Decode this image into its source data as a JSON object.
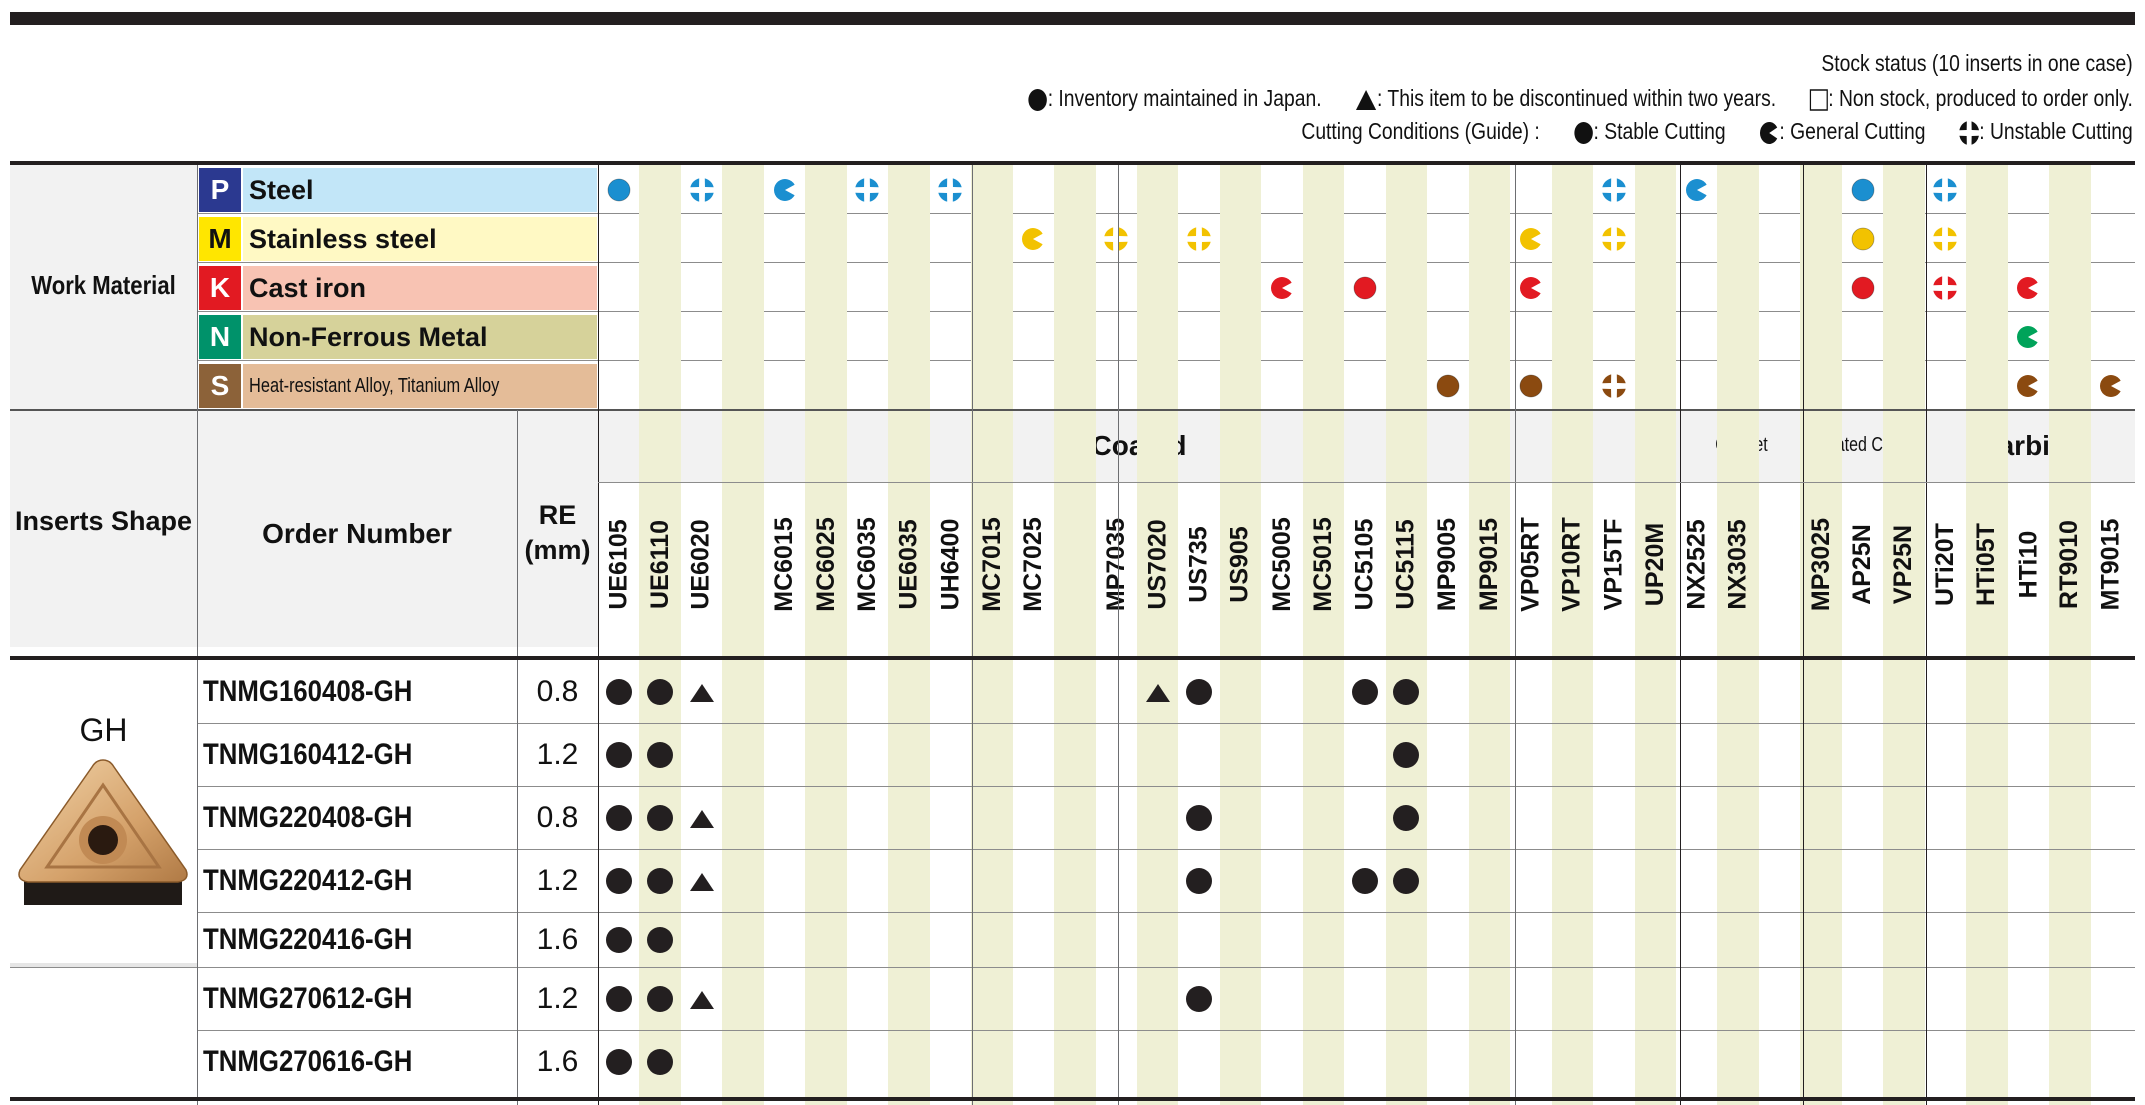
{
  "legend": {
    "stock_status_title": "Stock status (10 inserts in one case)",
    "inventory_text": ": Inventory maintained in Japan.",
    "discontinue_text": ": This item to be discontinued within two years.",
    "nonstock_text": ": Non stock, produced to order only.",
    "cutting_conditions_label": "Cutting Conditions (Guide) :",
    "stable_text": ": Stable Cutting",
    "general_text": ": General Cutting",
    "unstable_text": ": Unstable Cutting"
  },
  "work_material": {
    "label": "Work Material",
    "rows": [
      {
        "code": "P",
        "name": "Steel",
        "code_color": "#2b3990",
        "bg": "#c2e6f8",
        "dot_color": "#1b8fd0"
      },
      {
        "code": "M",
        "name": "Stainless steel",
        "code_color": "#ffe600",
        "bg": "#fff9c4",
        "dot_color": "#f2c200"
      },
      {
        "code": "K",
        "name": "Cast iron",
        "code_color": "#e21a22",
        "bg": "#f8c3b3",
        "dot_color": "#e21a22"
      },
      {
        "code": "N",
        "name": "Non-Ferrous Metal",
        "code_color": "#00926a",
        "bg": "#d6d29a",
        "dot_color": "#00a35a"
      },
      {
        "code": "S",
        "name": "Heat-resistant Alloy, Titanium Alloy",
        "code_color": "#8c6239",
        "bg": "#e4bc98",
        "dot_color": "#8b4a10"
      }
    ]
  },
  "groups": [
    {
      "label": "Coated"
    },
    {
      "label": "Cermet"
    },
    {
      "label": "Coated Cermet"
    },
    {
      "label": "Carbide"
    }
  ],
  "headers": {
    "inserts_shape": "Inserts Shape",
    "order_number": "Order Number",
    "re_label": "RE",
    "re_unit": "(mm)"
  },
  "grades": [
    "UE6105",
    "UE6110",
    "UE6020",
    "",
    "MC6015",
    "MC6025",
    "MC6035",
    "UE6035",
    "UH6400",
    "MC7015",
    "MC7025",
    "",
    "MP7035",
    "US7020",
    "US735",
    "US905",
    "MC5005",
    "MC5015",
    "UC5105",
    "UC5115",
    "MP9005",
    "MP9015",
    "VP05RT",
    "VP10RT",
    "VP15TF",
    "UP20M",
    "NX2525",
    "NX3035",
    "",
    "MP3025",
    "AP25N",
    "VP25N",
    "UTi20T",
    "HTi05T",
    "HTi10",
    "RT9010",
    "MT9015"
  ],
  "material_marks": {
    "P": [
      [
        "UE6105",
        "s"
      ],
      [
        "UE6110",
        "g"
      ],
      [
        "UE6020",
        "u"
      ],
      [
        "MC6015",
        "g"
      ],
      [
        "MC6025",
        "u"
      ],
      [
        "MC6035",
        "u"
      ],
      [
        "UE6035",
        "u"
      ],
      [
        "UH6400",
        "u"
      ],
      [
        "VP10RT",
        "u"
      ],
      [
        "VP15TF",
        "u"
      ],
      [
        "UP20M",
        "s"
      ],
      [
        "NX2525",
        "g"
      ],
      [
        "MP3025",
        "g"
      ],
      [
        "AP25N",
        "s"
      ],
      [
        "VP25N",
        "s"
      ],
      [
        "UTi20T",
        "u"
      ]
    ],
    "M": [
      [
        "MC7015",
        "s"
      ],
      [
        "MC7025",
        "g"
      ],
      [
        "MP7035",
        "u"
      ],
      [
        "US7020",
        "s"
      ],
      [
        "US735",
        "u"
      ],
      [
        "VP05RT",
        "g"
      ],
      [
        "VP10RT",
        "u"
      ],
      [
        "VP15TF",
        "u"
      ],
      [
        "UP20M",
        "s"
      ],
      [
        "AP25N",
        "s"
      ],
      [
        "VP25N",
        "s"
      ],
      [
        "UTi20T",
        "u"
      ]
    ],
    "K": [
      [
        "MC5005",
        "g"
      ],
      [
        "MC5015",
        "u"
      ],
      [
        "UC5105",
        "s"
      ],
      [
        "UC5115",
        "g"
      ],
      [
        "VP05RT",
        "g"
      ],
      [
        "VP10RT",
        "u"
      ],
      [
        "UP20M",
        "s"
      ],
      [
        "AP25N",
        "s"
      ],
      [
        "VP25N",
        "s"
      ],
      [
        "UTi20T",
        "u"
      ],
      [
        "HTi05T",
        "s"
      ],
      [
        "HTi10",
        "g"
      ]
    ],
    "N": [
      [
        "HTi10",
        "g"
      ]
    ],
    "S": [
      [
        "US905",
        "s"
      ],
      [
        "MP9005",
        "s"
      ],
      [
        "MP9015",
        "g"
      ],
      [
        "VP05RT",
        "s"
      ],
      [
        "VP10RT",
        "g"
      ],
      [
        "VP15TF",
        "u"
      ],
      [
        "HTi10",
        "g"
      ],
      [
        "RT9010",
        "g"
      ],
      [
        "MT9015",
        "g"
      ]
    ]
  },
  "shape": {
    "label": "GH"
  },
  "items": [
    {
      "order": "TNMG160408-GH",
      "re": "0.8",
      "marks": [
        [
          "UE6105",
          "stock"
        ],
        [
          "UE6110",
          "stock"
        ],
        [
          "UE6020",
          "disc"
        ],
        [
          "US7020",
          "disc"
        ],
        [
          "US735",
          "stock"
        ],
        [
          "UC5105",
          "stock"
        ],
        [
          "UC5115",
          "stock"
        ]
      ]
    },
    {
      "order": "TNMG160412-GH",
      "re": "1.2",
      "marks": [
        [
          "UE6105",
          "stock"
        ],
        [
          "UE6110",
          "stock"
        ],
        [
          "UC5115",
          "stock"
        ]
      ]
    },
    {
      "order": "TNMG220408-GH",
      "re": "0.8",
      "marks": [
        [
          "UE6105",
          "stock"
        ],
        [
          "UE6110",
          "stock"
        ],
        [
          "UE6020",
          "disc"
        ],
        [
          "US735",
          "stock"
        ],
        [
          "UC5115",
          "stock"
        ]
      ]
    },
    {
      "order": "TNMG220412-GH",
      "re": "1.2",
      "marks": [
        [
          "UE6105",
          "stock"
        ],
        [
          "UE6110",
          "stock"
        ],
        [
          "UE6020",
          "disc"
        ],
        [
          "US735",
          "stock"
        ],
        [
          "UC5105",
          "stock"
        ],
        [
          "UC5115",
          "stock"
        ]
      ]
    },
    {
      "order": "TNMG220416-GH",
      "re": "1.6",
      "marks": [
        [
          "UE6105",
          "stock"
        ],
        [
          "UE6110",
          "stock"
        ]
      ]
    },
    {
      "order": "TNMG270612-GH",
      "re": "1.2",
      "marks": [
        [
          "UE6105",
          "stock"
        ],
        [
          "UE6110",
          "stock"
        ],
        [
          "UE6020",
          "disc"
        ],
        [
          "US735",
          "stock"
        ]
      ]
    },
    {
      "order": "TNMG270616-GH",
      "re": "1.6",
      "marks": [
        [
          "UE6105",
          "stock"
        ],
        [
          "UE6110",
          "stock"
        ]
      ]
    }
  ],
  "colors": {
    "stripe": "#eff0d5",
    "header_bg": "#f2f2f2",
    "rule": "#231f20"
  }
}
